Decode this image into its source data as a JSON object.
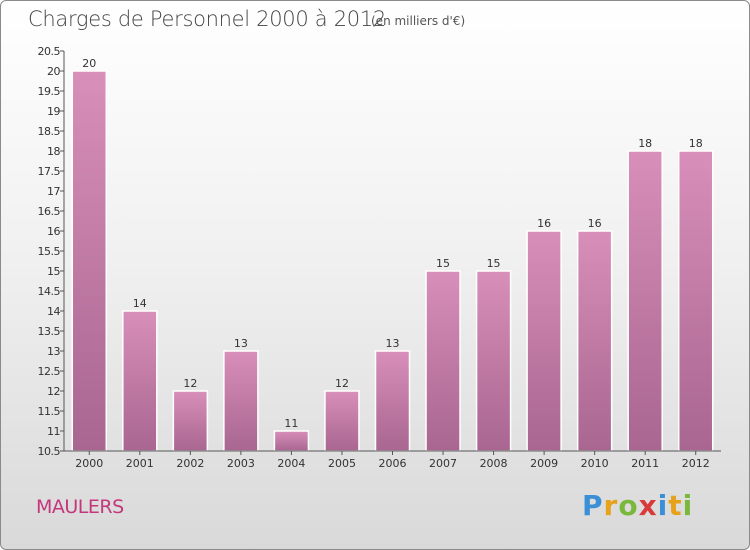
{
  "title": "Charges de Personnel 2000 à 2012",
  "subtitle": "(en milliers d'€)",
  "commune": "MAULERS",
  "logo": {
    "text": "Proxiti",
    "letters": [
      {
        "ch": "P",
        "color": "#3a8fd6"
      },
      {
        "ch": "r",
        "color": "#e5a21a"
      },
      {
        "ch": "o",
        "color": "#79b83a"
      },
      {
        "ch": "x",
        "color": "#d83a3a"
      },
      {
        "ch": "i",
        "color": "#3a8fd6"
      },
      {
        "ch": "t",
        "color": "#e5a21a"
      },
      {
        "ch": "i",
        "color": "#79b83a"
      }
    ]
  },
  "chart_data": {
    "type": "bar",
    "categories": [
      "2000",
      "2001",
      "2002",
      "2003",
      "2004",
      "2005",
      "2006",
      "2007",
      "2008",
      "2009",
      "2010",
      "2011",
      "2012"
    ],
    "values": [
      20,
      14,
      12,
      13,
      11,
      12,
      13,
      15,
      15,
      16,
      16,
      18,
      18
    ],
    "ylim": [
      10.5,
      20.5
    ],
    "yticks": [
      10.5,
      11,
      11.5,
      12,
      12.5,
      13,
      13.5,
      14,
      14.5,
      15,
      15.5,
      16,
      16.5,
      17,
      17.5,
      18,
      18.5,
      19,
      19.5,
      20,
      20.5
    ],
    "grid": false,
    "bar_color": "#d88fb9",
    "bar_color_dark": "#a86690"
  }
}
